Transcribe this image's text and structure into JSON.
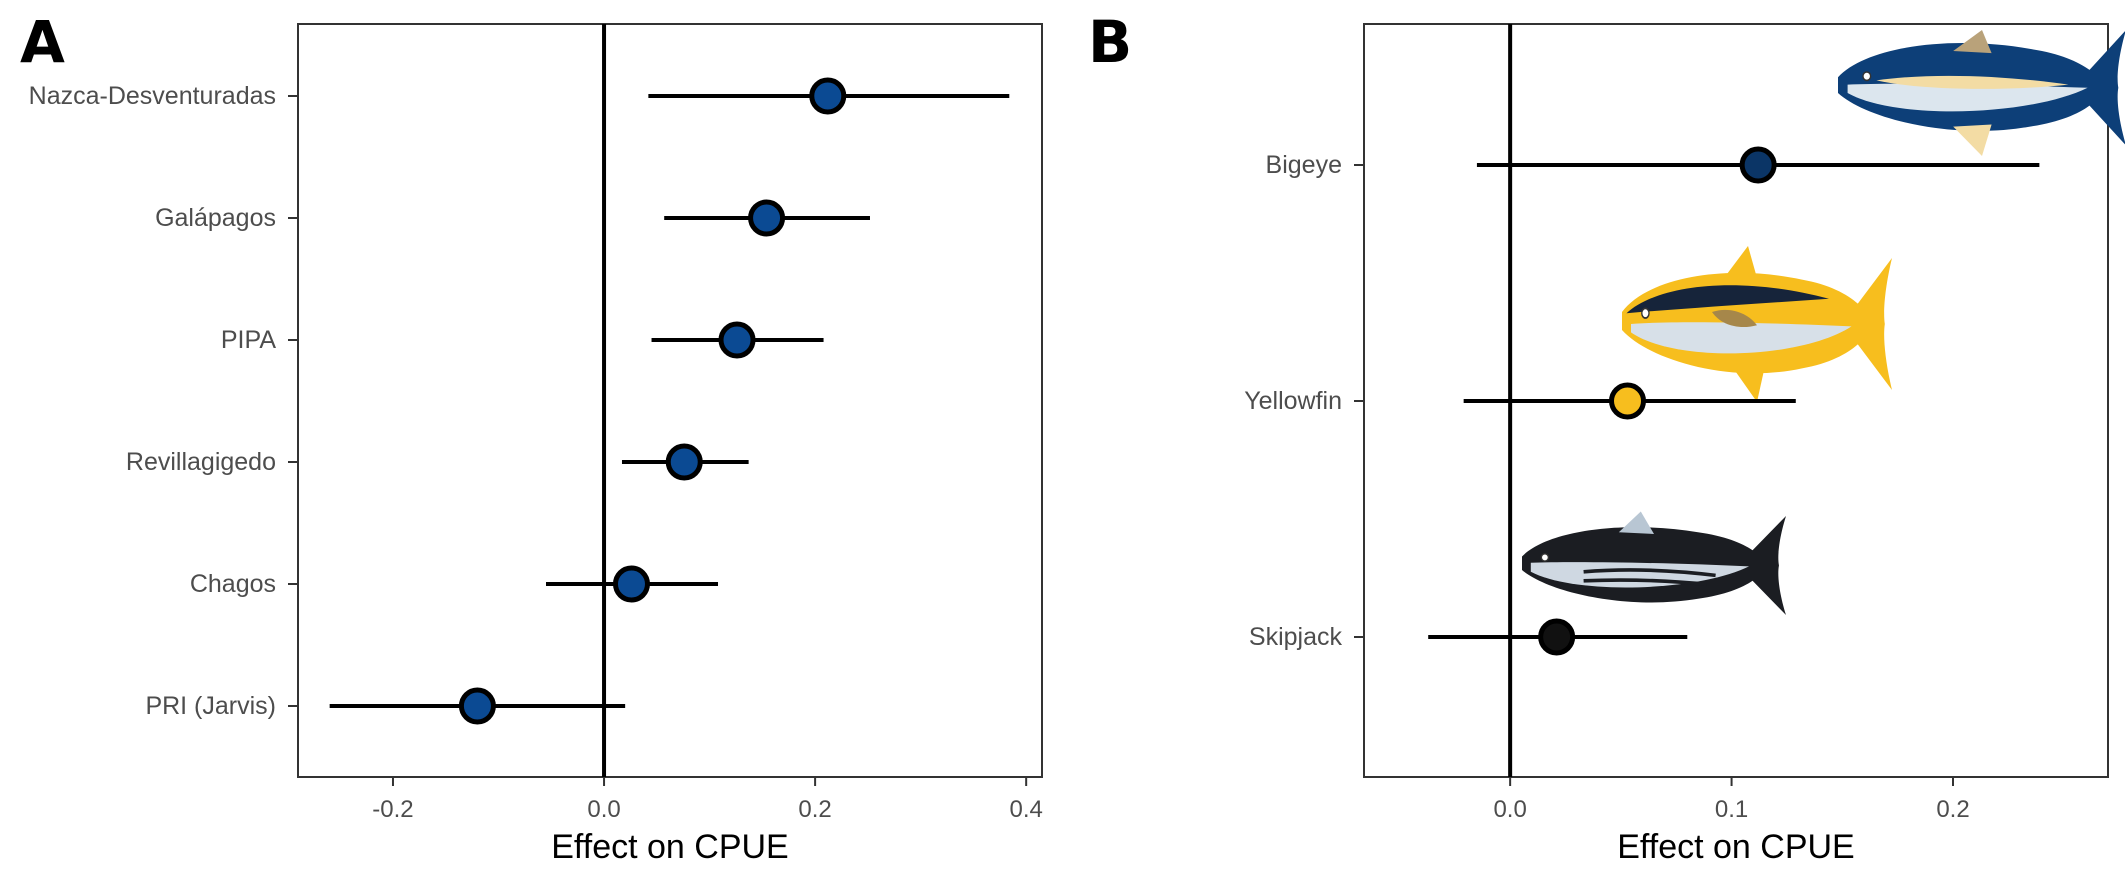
{
  "chart_data": [
    {
      "panel": "A",
      "type": "scatter",
      "title": "",
      "xlabel": "Effect on CPUE",
      "ylabel": "",
      "xlim": [
        -0.29,
        0.415
      ],
      "xticks": [
        -0.2,
        0.0,
        0.2,
        0.4
      ],
      "xtick_labels": [
        "-0.2",
        "0.0",
        "0.2",
        "0.4"
      ],
      "grid": false,
      "legend": "none",
      "reference_line_x": 0,
      "point_color": "#0b4a93",
      "categories": [
        "Nazca-Desventuradas",
        "Galápagos",
        "PIPA",
        "Revillagigedo",
        "Chagos",
        "PRI (Jarvis)"
      ],
      "estimates": [
        0.212,
        0.154,
        0.126,
        0.076,
        0.026,
        -0.12
      ],
      "lower": [
        0.042,
        0.057,
        0.045,
        0.017,
        -0.055,
        -0.26
      ],
      "upper": [
        0.384,
        0.252,
        0.208,
        0.137,
        0.108,
        0.02
      ]
    },
    {
      "panel": "B",
      "type": "scatter",
      "title": "",
      "xlabel": "Effect on CPUE",
      "ylabel": "",
      "xlim": [
        -0.066,
        0.27
      ],
      "xticks": [
        0.0,
        0.1,
        0.2
      ],
      "xtick_labels": [
        "0.0",
        "0.1",
        "0.2"
      ],
      "grid": false,
      "legend": "none",
      "reference_line_x": 0,
      "categories": [
        "Bigeye",
        "Yellowfin",
        "Skipjack"
      ],
      "estimates": [
        0.112,
        0.053,
        0.021
      ],
      "lower": [
        -0.015,
        -0.021,
        -0.037
      ],
      "upper": [
        0.239,
        0.129,
        0.08
      ],
      "point_colors": [
        "#0b3566",
        "#f7be1e",
        "#111111"
      ],
      "icons": [
        "bigeye-tuna-icon",
        "yellowfin-tuna-icon",
        "skipjack-tuna-icon"
      ]
    }
  ]
}
